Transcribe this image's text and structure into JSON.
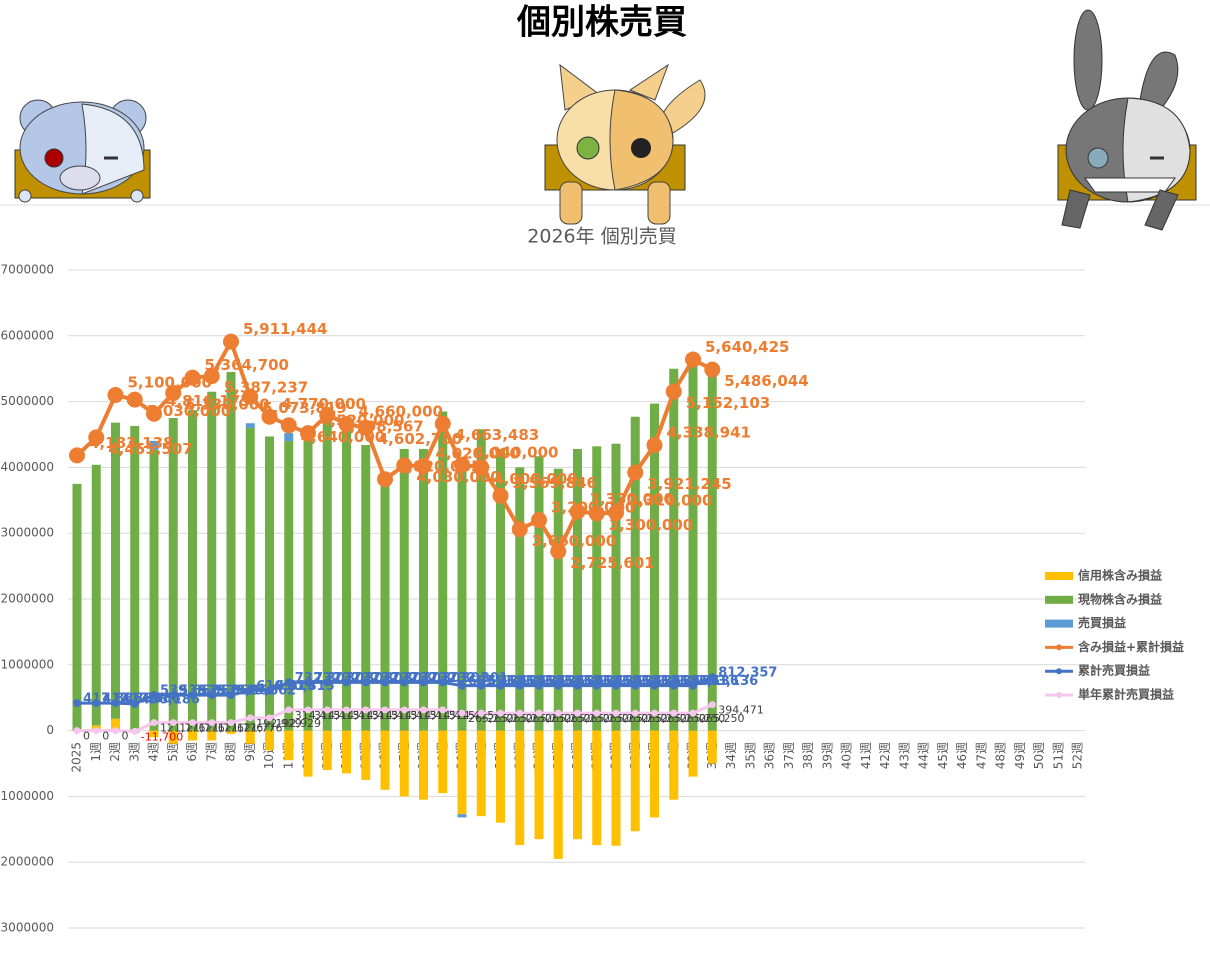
{
  "title": "個別株売買",
  "chart_data": {
    "type": "combo",
    "title": "2026年 個別売買",
    "categories": [
      "2025",
      "1週",
      "2週",
      "3週",
      "4週",
      "5週",
      "6週",
      "7週",
      "8週",
      "9週",
      "10週",
      "11週",
      "12週",
      "13週",
      "14週",
      "15週",
      "16週",
      "17週",
      "18週",
      "19週",
      "20週",
      "21週",
      "22週",
      "23週",
      "24週",
      "25週",
      "26週",
      "27週",
      "28週",
      "29週",
      "30週",
      "31週",
      "32週",
      "33週",
      "34週",
      "35週",
      "36週",
      "37週",
      "38週",
      "39週",
      "40週",
      "41週",
      "42週",
      "43週",
      "44週",
      "45週",
      "46週",
      "47週",
      "48週",
      "49週",
      "50週",
      "51週",
      "52週"
    ],
    "ylim": [
      -3000000,
      7000000
    ],
    "yticks": [
      -3000000,
      -2000000,
      -1000000,
      0,
      1000000,
      2000000,
      3000000,
      4000000,
      5000000,
      6000000,
      7000000
    ],
    "grid": true,
    "legend": "right",
    "series": [
      {
        "name": "信用株含み損益",
        "type": "bar",
        "color": "#ffc000",
        "values": [
          0,
          80000,
          180000,
          -20000,
          -100000,
          -200000,
          -150000,
          -150000,
          -50000,
          -200000,
          -300000,
          -450000,
          -700000,
          -600000,
          -650000,
          -750000,
          -900000,
          -1000000,
          -1050000,
          -950000,
          -1270000,
          -1300000,
          -1400000,
          -1740000,
          -1650000,
          -1950000,
          -1650000,
          -1740000,
          -1750000,
          -1530000,
          -1320000,
          -1050000,
          -700000,
          -500000,
          null,
          null,
          null,
          null,
          null,
          null,
          null,
          null,
          null,
          null,
          null,
          null,
          null,
          null,
          null,
          null,
          null,
          null,
          null
        ]
      },
      {
        "name": "現物株含み損益",
        "type": "bar",
        "color": "#70ad47",
        "values": [
          3750000,
          3960000,
          4500000,
          4630000,
          4270000,
          4750000,
          4870000,
          5150000,
          5450000,
          4600000,
          4470000,
          4400000,
          4550000,
          4750000,
          4690000,
          4340000,
          3870000,
          4280000,
          4280000,
          4850000,
          4120000,
          4580000,
          4280000,
          4000000,
          4170000,
          3980000,
          4280000,
          4320000,
          4360000,
          4770000,
          4970000,
          5500000,
          5600000,
          5450000,
          null,
          null,
          null,
          null,
          null,
          null,
          null,
          null,
          null,
          null,
          null,
          null,
          null,
          null,
          null,
          null,
          null,
          null,
          null
        ]
      },
      {
        "name": "売買損益",
        "type": "bar",
        "color": "#5b9bd5",
        "values": [
          0,
          0,
          0,
          -11700,
          133476,
          0,
          0,
          0,
          0,
          71153,
          0,
          121486,
          0,
          0,
          0,
          0,
          0,
          0,
          0,
          0,
          -49165,
          0,
          0,
          0,
          0,
          0,
          0,
          0,
          0,
          0,
          0,
          0,
          0,
          129221,
          null,
          null,
          null,
          null,
          null,
          null,
          null,
          null,
          null,
          null,
          null,
          null,
          null,
          null,
          null,
          null,
          null,
          null,
          null
        ]
      },
      {
        "name": "含み損益+累計損益",
        "type": "line",
        "color": "#ed7d31",
        "values": [
          4183138,
          4455507,
          5100000,
          5030000,
          4816175,
          5130000,
          5364700,
          5387237,
          5911444,
          5073819,
          4770000,
          4640000,
          4520000,
          4798567,
          4660000,
          4602780,
          3820055,
          4030000,
          4020000,
          4663483,
          4040000,
          4000000,
          3569846,
          3060000,
          3200000,
          2725601,
          3330000,
          3300000,
          3310000,
          3921245,
          4338941,
          5152103,
          5640425,
          5486044,
          null,
          null,
          null,
          null,
          null,
          null,
          null,
          null,
          null,
          null,
          null,
          null,
          null,
          null,
          null,
          null,
          null,
          null,
          null
        ],
        "value_labels": [
          "4,183,138",
          "4,455,507",
          "5,100,000",
          "5,030,000",
          "4,816,175",
          "5,130,000",
          "5,364,700",
          "5,387,237",
          "5,911,444",
          "5,073,819",
          "4,770,000",
          "4,640,000",
          "4,520,000",
          "4,798,567",
          "4,660,000",
          "4,602,780",
          "3,820,055",
          "4,030,000",
          "4,020,000",
          "4,663,483",
          "4,040,000",
          "4,000,000",
          "3,569,846",
          "3,060,000",
          "3,200,000",
          "2,725,601",
          "3,330,000",
          "3,300,000",
          "3,310,000",
          "3,921,245",
          "4,338,941",
          "5,152,103",
          "5,640,425",
          "5,486,044",
          null,
          null,
          null,
          null,
          null,
          null,
          null,
          null,
          null,
          null,
          null,
          null,
          null,
          null,
          null,
          null,
          null,
          null,
          null
        ]
      },
      {
        "name": "累計売買損益",
        "type": "line",
        "color": "#4472c4",
        "values": [
          417886,
          417886,
          417886,
          406186,
          539662,
          539662,
          539662,
          539662,
          539662,
          610815,
          610815,
          732301,
          732301,
          732301,
          732301,
          732301,
          732301,
          732301,
          732301,
          732301,
          683136,
          683136,
          683136,
          683136,
          683136,
          683136,
          683136,
          683136,
          683136,
          683136,
          683136,
          683136,
          683136,
          812357,
          null,
          null,
          null,
          null,
          null,
          null,
          null,
          null,
          null,
          null,
          null,
          null,
          null,
          null,
          null,
          null,
          null,
          null,
          null
        ],
        "value_labels": [
          "417,886",
          "417,886",
          "417,886",
          "406,186",
          "539,662",
          "539,662",
          "539,662",
          "539,662",
          "539,662",
          "610,815",
          "610,815",
          "732,301",
          "732,301",
          "732,301",
          "732,301",
          "732,301",
          "732,301",
          "732,301",
          "732,301",
          "732,301",
          "683,136",
          "683,136",
          "683,136",
          "683,136",
          "683,136",
          "683,136",
          "683,136",
          "683,136",
          "683,136",
          "683,136",
          "683,136",
          "683,136",
          "683,136",
          "812,357",
          null,
          null,
          null,
          null,
          null,
          null,
          null,
          null,
          null,
          null,
          null,
          null,
          null,
          null,
          null,
          null,
          null,
          null,
          null
        ]
      },
      {
        "name": "単年累計売買損益",
        "type": "line",
        "color": "#f7c6ee",
        "values": [
          0,
          0,
          0,
          -11700,
          121776,
          121776,
          121776,
          121776,
          121776,
          192929,
          192929,
          314415,
          314415,
          314415,
          314415,
          314415,
          314415,
          314415,
          314415,
          314415,
          265250,
          265250,
          265250,
          265250,
          265250,
          265250,
          265250,
          265250,
          265250,
          265250,
          265250,
          265250,
          265250,
          394471,
          null,
          null,
          null,
          null,
          null,
          null,
          null,
          null,
          null,
          null,
          null,
          null,
          null,
          null,
          null,
          null,
          null,
          null,
          null
        ],
        "value_labels": [
          "0",
          "0",
          "0",
          "-11,700",
          "121,776",
          "121,776",
          "121,776",
          "121,776",
          "121,776",
          "192,929",
          "192,929",
          "314,415",
          "314,415",
          "314,415",
          "314,415",
          "314,415",
          "314,415",
          "314,415",
          "314,415",
          "314,415",
          "265,250",
          "265,250",
          "265,250",
          "265,250",
          "265,250",
          "265,250",
          "265,250",
          "265,250",
          "265,250",
          "265,250",
          "265,250",
          "265,250",
          "265,250",
          "394,471",
          null,
          null,
          null,
          null,
          null,
          null,
          null,
          null,
          null,
          null,
          null,
          null,
          null,
          null,
          null,
          null,
          null,
          null,
          null
        ]
      }
    ]
  }
}
